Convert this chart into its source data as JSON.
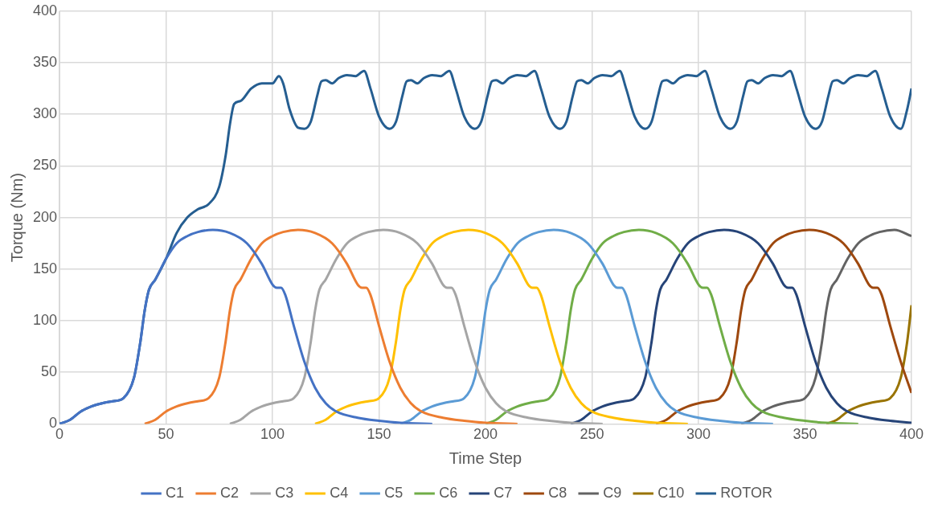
{
  "chart_data": {
    "type": "line",
    "xlabel": "Time Step",
    "ylabel": "Torque (Nm)",
    "xlim": [
      0,
      400
    ],
    "xticks": [
      0,
      50,
      100,
      150,
      200,
      250,
      300,
      350,
      400
    ],
    "ylim": [
      0,
      400
    ],
    "yticks": [
      0,
      50,
      100,
      150,
      200,
      250,
      300,
      350,
      400
    ],
    "grid": true,
    "legend": "bottom",
    "marker": "none",
    "line_style": "solid",
    "series": [
      {
        "name": "C1",
        "color": "#4472c4",
        "x": [
          0,
          5,
          10,
          15,
          20,
          25,
          30,
          35,
          38,
          40,
          42,
          45,
          50,
          55,
          60,
          65,
          72,
          80,
          88,
          95,
          100,
          102,
          104,
          106,
          110,
          115,
          120,
          125,
          130,
          140,
          150,
          160,
          175
        ],
        "values": [
          0,
          4,
          12,
          17,
          20,
          22,
          25,
          45,
          80,
          110,
          130,
          140,
          160,
          175,
          182,
          186,
          188,
          185,
          175,
          155,
          135,
          132,
          132,
          125,
          95,
          60,
          35,
          20,
          12,
          6,
          3,
          1,
          0
        ]
      },
      {
        "name": "C2",
        "color": "#ed7d31",
        "x": [
          40,
          45,
          50,
          55,
          60,
          65,
          70,
          75,
          78,
          80,
          82,
          85,
          90,
          95,
          100,
          105,
          112,
          120,
          128,
          135,
          140,
          142,
          144,
          146,
          150,
          155,
          160,
          165,
          170,
          180,
          190,
          200,
          215
        ],
        "values": [
          0,
          4,
          12,
          17,
          20,
          22,
          25,
          45,
          80,
          110,
          130,
          140,
          160,
          175,
          182,
          186,
          188,
          185,
          175,
          155,
          135,
          132,
          132,
          125,
          95,
          60,
          35,
          20,
          12,
          6,
          3,
          1,
          0
        ]
      },
      {
        "name": "C3",
        "color": "#a5a5a5",
        "x": [
          80,
          85,
          90,
          95,
          100,
          105,
          110,
          115,
          118,
          120,
          122,
          125,
          130,
          135,
          140,
          145,
          152,
          160,
          168,
          175,
          180,
          182,
          184,
          186,
          190,
          195,
          200,
          205,
          210,
          220,
          230,
          240,
          255
        ],
        "values": [
          0,
          4,
          12,
          17,
          20,
          22,
          25,
          45,
          80,
          110,
          130,
          140,
          160,
          175,
          182,
          186,
          188,
          185,
          175,
          155,
          135,
          132,
          132,
          125,
          95,
          60,
          35,
          20,
          12,
          6,
          3,
          1,
          0
        ]
      },
      {
        "name": "C4",
        "color": "#ffc000",
        "x": [
          120,
          125,
          130,
          135,
          140,
          145,
          150,
          155,
          158,
          160,
          162,
          165,
          170,
          175,
          180,
          185,
          192,
          200,
          208,
          215,
          220,
          222,
          224,
          226,
          230,
          235,
          240,
          245,
          250,
          260,
          270,
          280,
          295
        ],
        "values": [
          0,
          4,
          12,
          17,
          20,
          22,
          25,
          45,
          80,
          110,
          130,
          140,
          160,
          175,
          182,
          186,
          188,
          185,
          175,
          155,
          135,
          132,
          132,
          125,
          95,
          60,
          35,
          20,
          12,
          6,
          3,
          1,
          0
        ]
      },
      {
        "name": "C5",
        "color": "#5b9bd5",
        "x": [
          160,
          165,
          170,
          175,
          180,
          185,
          190,
          195,
          198,
          200,
          202,
          205,
          210,
          215,
          220,
          225,
          232,
          240,
          248,
          255,
          260,
          262,
          264,
          266,
          270,
          275,
          280,
          285,
          290,
          300,
          310,
          320,
          335
        ],
        "values": [
          0,
          4,
          12,
          17,
          20,
          22,
          25,
          45,
          80,
          110,
          130,
          140,
          160,
          175,
          182,
          186,
          188,
          185,
          175,
          155,
          135,
          132,
          132,
          125,
          95,
          60,
          35,
          20,
          12,
          6,
          3,
          1,
          0
        ]
      },
      {
        "name": "C6",
        "color": "#70ad47",
        "x": [
          200,
          205,
          210,
          215,
          220,
          225,
          230,
          235,
          238,
          240,
          242,
          245,
          250,
          255,
          260,
          265,
          272,
          280,
          288,
          295,
          300,
          302,
          304,
          306,
          310,
          315,
          320,
          325,
          330,
          340,
          350,
          360,
          375
        ],
        "values": [
          0,
          4,
          12,
          17,
          20,
          22,
          25,
          45,
          80,
          110,
          130,
          140,
          160,
          175,
          182,
          186,
          188,
          185,
          175,
          155,
          135,
          132,
          132,
          125,
          95,
          60,
          35,
          20,
          12,
          6,
          3,
          1,
          0
        ]
      },
      {
        "name": "C7",
        "color": "#264478",
        "x": [
          240,
          245,
          250,
          255,
          260,
          265,
          270,
          275,
          278,
          280,
          282,
          285,
          290,
          295,
          300,
          305,
          312,
          320,
          328,
          335,
          340,
          342,
          344,
          346,
          350,
          355,
          360,
          365,
          370,
          380,
          390,
          400
        ],
        "values": [
          0,
          4,
          12,
          17,
          20,
          22,
          25,
          45,
          80,
          110,
          130,
          140,
          160,
          175,
          182,
          186,
          188,
          185,
          175,
          155,
          135,
          132,
          132,
          125,
          95,
          60,
          35,
          20,
          12,
          6,
          3,
          1
        ]
      },
      {
        "name": "C8",
        "color": "#9e480e",
        "x": [
          280,
          285,
          290,
          295,
          300,
          305,
          310,
          315,
          318,
          320,
          322,
          325,
          330,
          335,
          340,
          345,
          352,
          360,
          368,
          375,
          380,
          382,
          384,
          386,
          390,
          395,
          400
        ],
        "values": [
          0,
          4,
          12,
          17,
          20,
          22,
          25,
          45,
          80,
          110,
          130,
          140,
          160,
          175,
          182,
          186,
          188,
          185,
          175,
          155,
          135,
          132,
          132,
          125,
          95,
          60,
          30
        ]
      },
      {
        "name": "C9",
        "color": "#636363",
        "x": [
          320,
          325,
          330,
          335,
          340,
          345,
          350,
          355,
          358,
          360,
          362,
          365,
          370,
          375,
          380,
          385,
          392,
          400
        ],
        "values": [
          0,
          4,
          12,
          17,
          20,
          22,
          25,
          45,
          80,
          110,
          130,
          140,
          160,
          175,
          182,
          186,
          188,
          182
        ]
      },
      {
        "name": "C10",
        "color": "#997300",
        "x": [
          360,
          365,
          370,
          375,
          380,
          385,
          390,
          395,
          398,
          400
        ],
        "values": [
          0,
          4,
          12,
          17,
          20,
          22,
          25,
          45,
          80,
          115
        ]
      },
      {
        "name": "ROTOR",
        "color": "#255e91",
        "x": [
          0,
          5,
          10,
          15,
          20,
          25,
          30,
          35,
          38,
          40,
          42,
          45,
          50,
          55,
          60,
          65,
          70,
          75,
          78,
          80,
          82,
          85,
          90,
          95,
          100,
          103,
          105,
          108,
          112,
          115,
          118,
          121,
          123,
          125,
          128,
          131,
          135,
          139,
          143,
          146,
          150,
          155,
          158,
          161,
          163,
          165,
          168,
          171,
          175,
          179,
          183,
          186,
          190,
          195,
          198,
          201,
          203,
          205,
          208,
          211,
          215,
          219,
          223,
          226,
          230,
          235,
          238,
          241,
          243,
          245,
          248,
          251,
          255,
          259,
          263,
          266,
          270,
          275,
          278,
          281,
          283,
          285,
          288,
          291,
          295,
          299,
          303,
          306,
          310,
          315,
          318,
          321,
          323,
          325,
          328,
          331,
          335,
          339,
          343,
          346,
          350,
          355,
          358,
          361,
          363,
          365,
          368,
          371,
          375,
          379,
          383,
          386,
          390,
          395,
          398,
          400
        ],
        "values": [
          0,
          4,
          12,
          17,
          20,
          22,
          25,
          45,
          80,
          110,
          130,
          140,
          160,
          185,
          200,
          208,
          213,
          230,
          260,
          290,
          310,
          313,
          325,
          330,
          330,
          337,
          330,
          305,
          287,
          286,
          293,
          318,
          332,
          333,
          330,
          335,
          338,
          337,
          342,
          325,
          298,
          286,
          293,
          318,
          332,
          333,
          330,
          335,
          338,
          337,
          342,
          325,
          298,
          286,
          293,
          318,
          332,
          333,
          330,
          335,
          338,
          337,
          342,
          325,
          298,
          286,
          293,
          318,
          332,
          333,
          330,
          335,
          338,
          337,
          342,
          325,
          298,
          286,
          293,
          318,
          332,
          333,
          330,
          335,
          338,
          337,
          342,
          325,
          298,
          286,
          293,
          318,
          332,
          333,
          330,
          335,
          338,
          337,
          342,
          325,
          298,
          286,
          293,
          318,
          332,
          333,
          330,
          335,
          338,
          337,
          342,
          325,
          298,
          286,
          305,
          325
        ]
      }
    ]
  }
}
